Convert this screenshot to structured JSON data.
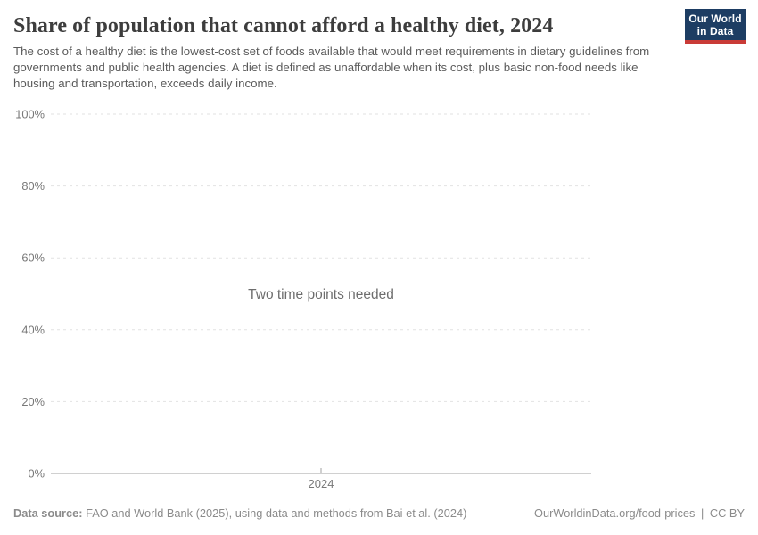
{
  "header": {
    "title": "Share of population that cannot afford a healthy diet, 2024",
    "subtitle": "The cost of a healthy diet is the lowest-cost set of foods available that would meet requirements in dietary guidelines from governments and public health agencies. A diet is defined as unaffordable when its cost, plus basic non-food needs like housing and transportation, exceeds daily income.",
    "logo": {
      "line1": "Our World",
      "line2": "in Data",
      "bg_color": "#1d3d63",
      "accent_color": "#c93b37"
    }
  },
  "chart_data": {
    "type": "line",
    "series": [],
    "x": [],
    "title": "Share of population that cannot afford a healthy diet, 2024",
    "xlabel": "",
    "ylabel": "",
    "ylim": [
      0,
      100
    ],
    "y_ticks": [
      0,
      20,
      40,
      60,
      80,
      100
    ],
    "y_tick_format": "{v}%",
    "x_tick_labels": [
      "2024"
    ],
    "grid": "horizontal-dashed",
    "legend": "none",
    "annotation": "Two time points needed"
  },
  "footer": {
    "data_source_label": "Data source:",
    "data_source_text": "FAO and World Bank (2025), using data and methods from Bai et al. (2024)",
    "link_text": "OurWorldinData.org/food-prices",
    "separator": "|",
    "license": "CC BY"
  },
  "colors": {
    "title": "#3d3d3d",
    "subtitle": "#5b5b5b",
    "gridline": "#e2e2e2",
    "axis_line": "#a1a1a1",
    "axis_label": "#787878",
    "annotation": "#6d6d6d",
    "footer_text": "#8b8b8b",
    "background": "#ffffff"
  }
}
